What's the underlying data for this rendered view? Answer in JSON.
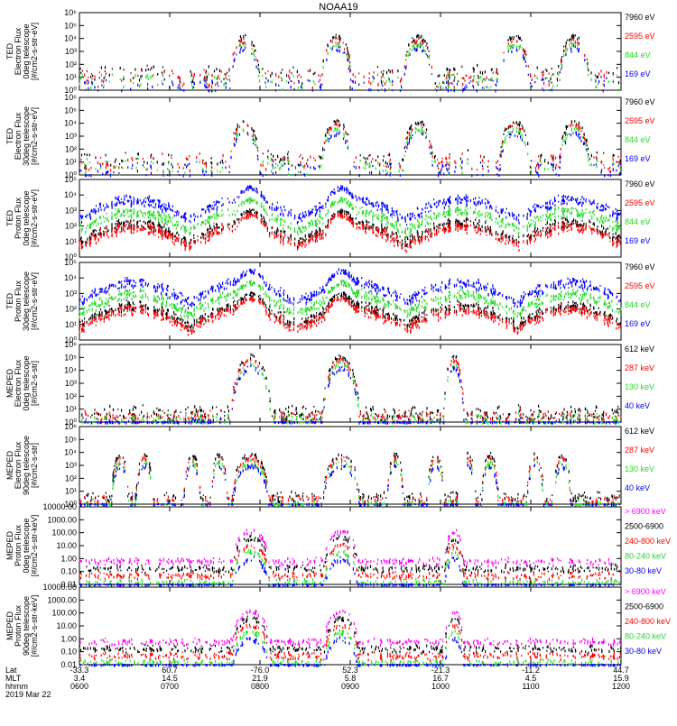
{
  "title": "NOAA19",
  "colors": {
    "black": "#000000",
    "red": "#ff0000",
    "green": "#22dd22",
    "blue": "#0000ff",
    "magenta": "#ff00ff"
  },
  "chart_data": [
    {
      "type": "scatter",
      "ylabel": [
        "TED",
        "Electron Flux",
        "0deg telescope",
        "[#/cm2-s-str-eV]"
      ],
      "scale": "log",
      "yticks": [
        "10⁰",
        "10¹",
        "10²",
        "10³",
        "10⁴",
        "10⁵",
        "10⁶"
      ],
      "ylim": [
        0,
        6
      ],
      "legend": [
        {
          "label": "7960 eV",
          "color": "#000000"
        },
        {
          "label": "2595 eV",
          "color": "#ff0000"
        },
        {
          "label": "844 eV",
          "color": "#22dd22"
        },
        {
          "label": "169 eV",
          "color": "#0000ff"
        }
      ],
      "profile": "ted-e"
    },
    {
      "type": "scatter",
      "ylabel": [
        "TED",
        "Electron Flux",
        "30deg telescope",
        "[#/cm2-s-str-eV]"
      ],
      "scale": "log",
      "yticks": [
        "10⁰",
        "10¹",
        "10²",
        "10³",
        "10⁴",
        "10⁵",
        "10⁶"
      ],
      "ylim": [
        0,
        6
      ],
      "legend": [
        {
          "label": "7960 eV",
          "color": "#000000"
        },
        {
          "label": "2595 eV",
          "color": "#ff0000"
        },
        {
          "label": "844 eV",
          "color": "#22dd22"
        },
        {
          "label": "169 eV",
          "color": "#0000ff"
        }
      ],
      "profile": "ted-e"
    },
    {
      "type": "scatter",
      "ylabel": [
        "TED",
        "Proton Flux",
        "0deg telescope",
        "[#/cm2-s-str-eV]"
      ],
      "scale": "log",
      "yticks": [
        "10⁰",
        "10¹",
        "10²",
        "10³",
        "10⁴",
        "10⁵"
      ],
      "ylim": [
        0,
        5
      ],
      "legend": [
        {
          "label": "7960 eV",
          "color": "#000000"
        },
        {
          "label": "2595 eV",
          "color": "#ff0000"
        },
        {
          "label": "844 eV",
          "color": "#22dd22"
        },
        {
          "label": "169 eV",
          "color": "#0000ff"
        }
      ],
      "profile": "ted-p"
    },
    {
      "type": "scatter",
      "ylabel": [
        "TED",
        "Proton Flux",
        "30deg telescope",
        "[#/cm2-s-str-eV]"
      ],
      "scale": "log",
      "yticks": [
        "10⁰",
        "10¹",
        "10²",
        "10³",
        "10⁴",
        "10⁵"
      ],
      "ylim": [
        0,
        5
      ],
      "legend": [
        {
          "label": "7960 eV",
          "color": "#000000"
        },
        {
          "label": "2595 eV",
          "color": "#ff0000"
        },
        {
          "label": "844 eV",
          "color": "#22dd22"
        },
        {
          "label": "169 eV",
          "color": "#0000ff"
        }
      ],
      "profile": "ted-p"
    },
    {
      "type": "scatter",
      "ylabel": [
        "MEPED",
        "Electron Flux",
        "0deg telescope",
        "[#/cm2-s-str]"
      ],
      "scale": "log",
      "yticks": [
        "10⁰",
        "10¹",
        "10²",
        "10³",
        "10⁴",
        "10⁵",
        "10⁶"
      ],
      "ylim": [
        0,
        6
      ],
      "legend": [
        {
          "label": "612 keV",
          "color": "#000000"
        },
        {
          "label": "287 keV",
          "color": "#ff0000"
        },
        {
          "label": "130 keV",
          "color": "#22dd22"
        },
        {
          "label": "40 keV",
          "color": "#0000ff"
        }
      ],
      "profile": "mep-e0"
    },
    {
      "type": "scatter",
      "ylabel": [
        "MEPED",
        "Electron Flux",
        "90deg telescope",
        "[#/cm2-s-str]"
      ],
      "scale": "log",
      "yticks": [
        "10⁰",
        "10¹",
        "10²",
        "10³",
        "10⁴",
        "10⁵",
        "10⁶"
      ],
      "ylim": [
        0,
        6
      ],
      "legend": [
        {
          "label": "612 keV",
          "color": "#000000"
        },
        {
          "label": "287 keV",
          "color": "#ff0000"
        },
        {
          "label": "130 keV",
          "color": "#22dd22"
        },
        {
          "label": "40 keV",
          "color": "#0000ff"
        }
      ],
      "profile": "mep-e90"
    },
    {
      "type": "scatter",
      "ylabel": [
        "MEPED",
        "Proton Flux",
        "0deg telescope",
        "[#/cm2-s-str-keV]"
      ],
      "scale": "log",
      "yticks": [
        "0.01",
        "0.10",
        "1.00",
        "10.00",
        "100.00",
        "1000.00",
        "10000.00"
      ],
      "ylim": [
        -2,
        4
      ],
      "legend": [
        {
          "label": "> 6900 keV",
          "color": "#ff00ff"
        },
        {
          "label": "2500-6900",
          "color": "#000000"
        },
        {
          "label": "240-800 keV",
          "color": "#ff0000"
        },
        {
          "label": "80-240 keV",
          "color": "#22dd22"
        },
        {
          "label": "30-80 keV",
          "color": "#0000ff"
        }
      ],
      "profile": "mep-p"
    },
    {
      "type": "scatter",
      "ylabel": [
        "MEPED",
        "Proton Flux",
        "90deg telescope",
        "[#/cm2-s-str-keV]"
      ],
      "scale": "log",
      "yticks": [
        "0.01",
        "0.10",
        "1.00",
        "10.00",
        "100.00",
        "1000.00",
        "10000.00"
      ],
      "ylim": [
        -2,
        4
      ],
      "legend": [
        {
          "label": "> 6900 keV",
          "color": "#ff00ff"
        },
        {
          "label": "2500-6900",
          "color": "#000000"
        },
        {
          "label": "240-800 keV",
          "color": "#ff0000"
        },
        {
          "label": "80-240 keV",
          "color": "#22dd22"
        },
        {
          "label": "30-80 keV",
          "color": "#0000ff"
        }
      ],
      "profile": "mep-p"
    }
  ],
  "xaxis": {
    "row_labels": [
      "Lat",
      "MLT",
      "hhmm"
    ],
    "date": "2019 Mar 22",
    "ticks": [
      {
        "lat": "-33.3",
        "mlt": "3.4",
        "hhmm": "0600"
      },
      {
        "lat": "60.7",
        "mlt": "14.5",
        "hhmm": "0700"
      },
      {
        "lat": "-76.0",
        "mlt": "21.9",
        "hhmm": "0800"
      },
      {
        "lat": "52.3",
        "mlt": "5.8",
        "hhmm": "0900"
      },
      {
        "lat": "-21.3",
        "mlt": "16.7",
        "hhmm": "1000"
      },
      {
        "lat": "-11.2",
        "mlt": "4.5",
        "hhmm": "1100"
      },
      {
        "lat": "44.7",
        "mlt": "15.9",
        "hhmm": "1200"
      }
    ]
  }
}
